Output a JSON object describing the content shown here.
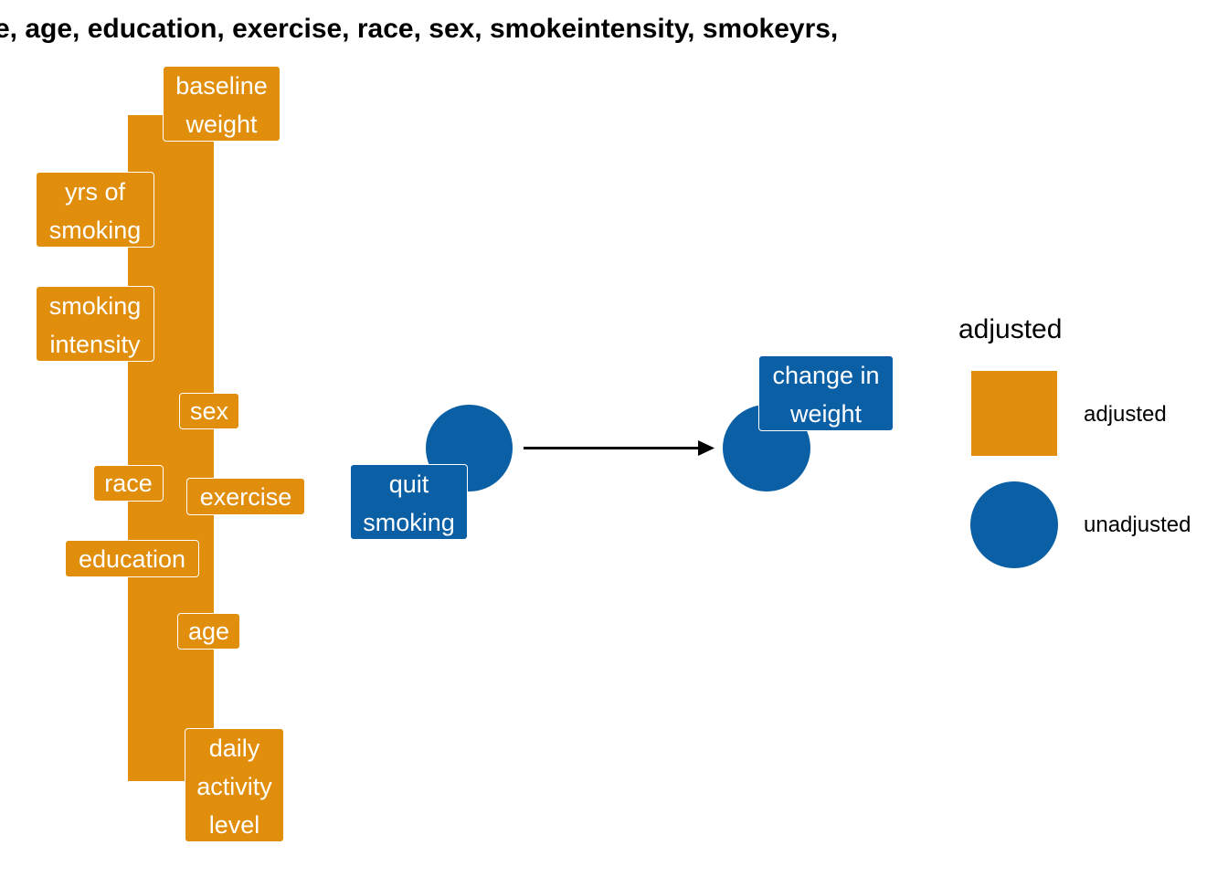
{
  "title": "e, age, education, exercise, race, sex, smokeintensity, smokeyrs,",
  "nodes": {
    "baseline_weight": "baseline\nweight",
    "yrs_of_smoking": "yrs of\nsmoking",
    "smoking_intensity": "smoking\nintensity",
    "sex": "sex",
    "race": "race",
    "exercise": "exercise",
    "education": "education",
    "age": "age",
    "daily_activity": "daily\nactivity\nlevel",
    "quit_smoking": "quit\nsmoking",
    "change_in_weight": "change in\nweight"
  },
  "edges": [
    {
      "from": "quit smoking",
      "to": "change in weight"
    }
  ],
  "legend": {
    "title": "adjusted",
    "items": [
      {
        "label": "adjusted",
        "shape": "square",
        "color": "#e08e0b"
      },
      {
        "label": "unadjusted",
        "shape": "circle",
        "color": "#0b5fa5"
      }
    ]
  },
  "colors": {
    "adjusted": "#e08e0b",
    "unadjusted": "#0b5fa5"
  }
}
